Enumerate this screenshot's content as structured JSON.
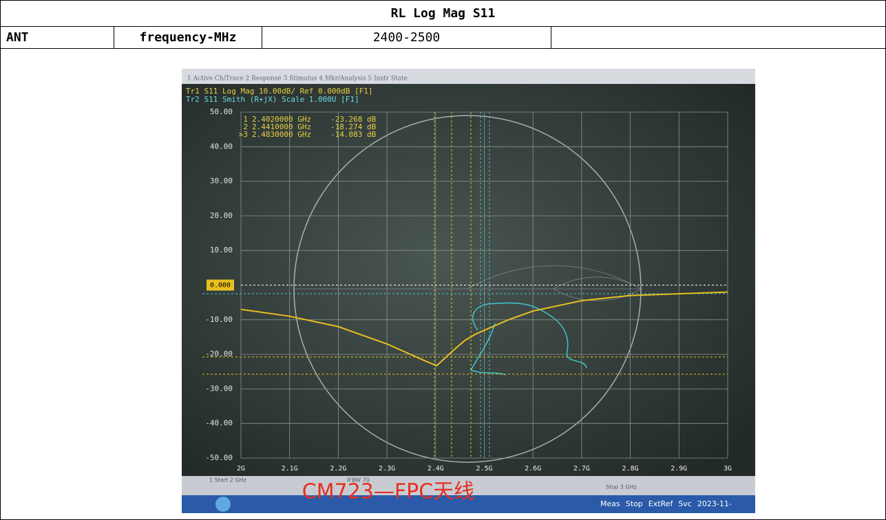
{
  "table": {
    "title": "RL Log Mag S11",
    "rows": [
      [
        "ANT",
        "frequency-MHz",
        "2400-2500",
        null
      ]
    ]
  },
  "screen": {
    "menu": "1 Active Ch/Trace  2 Response  3 Stimulus  4 Mkr/Analysis  5 Instr State",
    "trace1_label": "Tr1 S11 Log Mag 10.00dB/ Ref 0.000dB [F1]",
    "trace2_label": "Tr2 S11 Smith (R+jX) Scale 1.000U [F1]",
    "markers": [
      {
        "id": "1",
        "freq": "2.4020000 GHz",
        "value": "-23.268 dB"
      },
      {
        "id": "2",
        "freq": "2.4410000 GHz",
        "value": "-18.274 dB"
      },
      {
        "id": ">3",
        "freq": "2.4830000 GHz",
        "value": "-14.083 dB"
      }
    ],
    "ref_label": "0.000",
    "chart_data": {
      "type": "line",
      "xlim": [
        2,
        3
      ],
      "ylim": [
        -50,
        50
      ],
      "xticks": [
        {
          "value": 2,
          "label": "2G"
        },
        {
          "value": 2.1,
          "label": "2.1G"
        },
        {
          "value": 2.2,
          "label": "2.2G"
        },
        {
          "value": 2.3,
          "label": "2.3G"
        },
        {
          "value": 2.4,
          "label": "2.4G"
        },
        {
          "value": 2.5,
          "label": "2.5G"
        },
        {
          "value": 2.6,
          "label": "2.6G"
        },
        {
          "value": 2.7,
          "label": "2.7G"
        },
        {
          "value": 2.8,
          "label": "2.8G"
        },
        {
          "value": 2.9,
          "label": "2.9G"
        },
        {
          "value": 3,
          "label": "3G"
        }
      ],
      "yticks": [
        {
          "value": 50,
          "label": "50.00"
        },
        {
          "value": 40,
          "label": "40.00"
        },
        {
          "value": 30,
          "label": "30.00"
        },
        {
          "value": 20,
          "label": "20.00"
        },
        {
          "value": 10,
          "label": "10.00"
        },
        {
          "value": -10,
          "label": "-10.00"
        },
        {
          "value": -20,
          "label": "-20.00"
        },
        {
          "value": -30,
          "label": "-30.00"
        },
        {
          "value": -40,
          "label": "-40.00"
        },
        {
          "value": -50,
          "label": "-50.00"
        }
      ],
      "grid": true,
      "x": [
        2.0,
        2.1,
        2.2,
        2.3,
        2.38,
        2.402,
        2.42,
        2.441,
        2.46,
        2.483,
        2.55,
        2.6,
        2.7,
        2.8,
        2.9,
        3.0
      ],
      "series": [
        {
          "color": "#e8c020",
          "values": [
            -7,
            -9,
            -12,
            -17,
            -22,
            -23.3,
            -21,
            -18.3,
            -16,
            -14.1,
            -10,
            -7.5,
            -4.5,
            -3,
            -2.5,
            -2
          ]
        }
      ]
    },
    "start": "1  Start 2 GHz",
    "ifbw": "IFBW 70",
    "stop": "Stop 3 GHz",
    "overlay": "CM723—FPC天线",
    "status": [
      "Meas",
      "Stop",
      "ExtRef",
      "Svc",
      "2023-11-"
    ]
  }
}
